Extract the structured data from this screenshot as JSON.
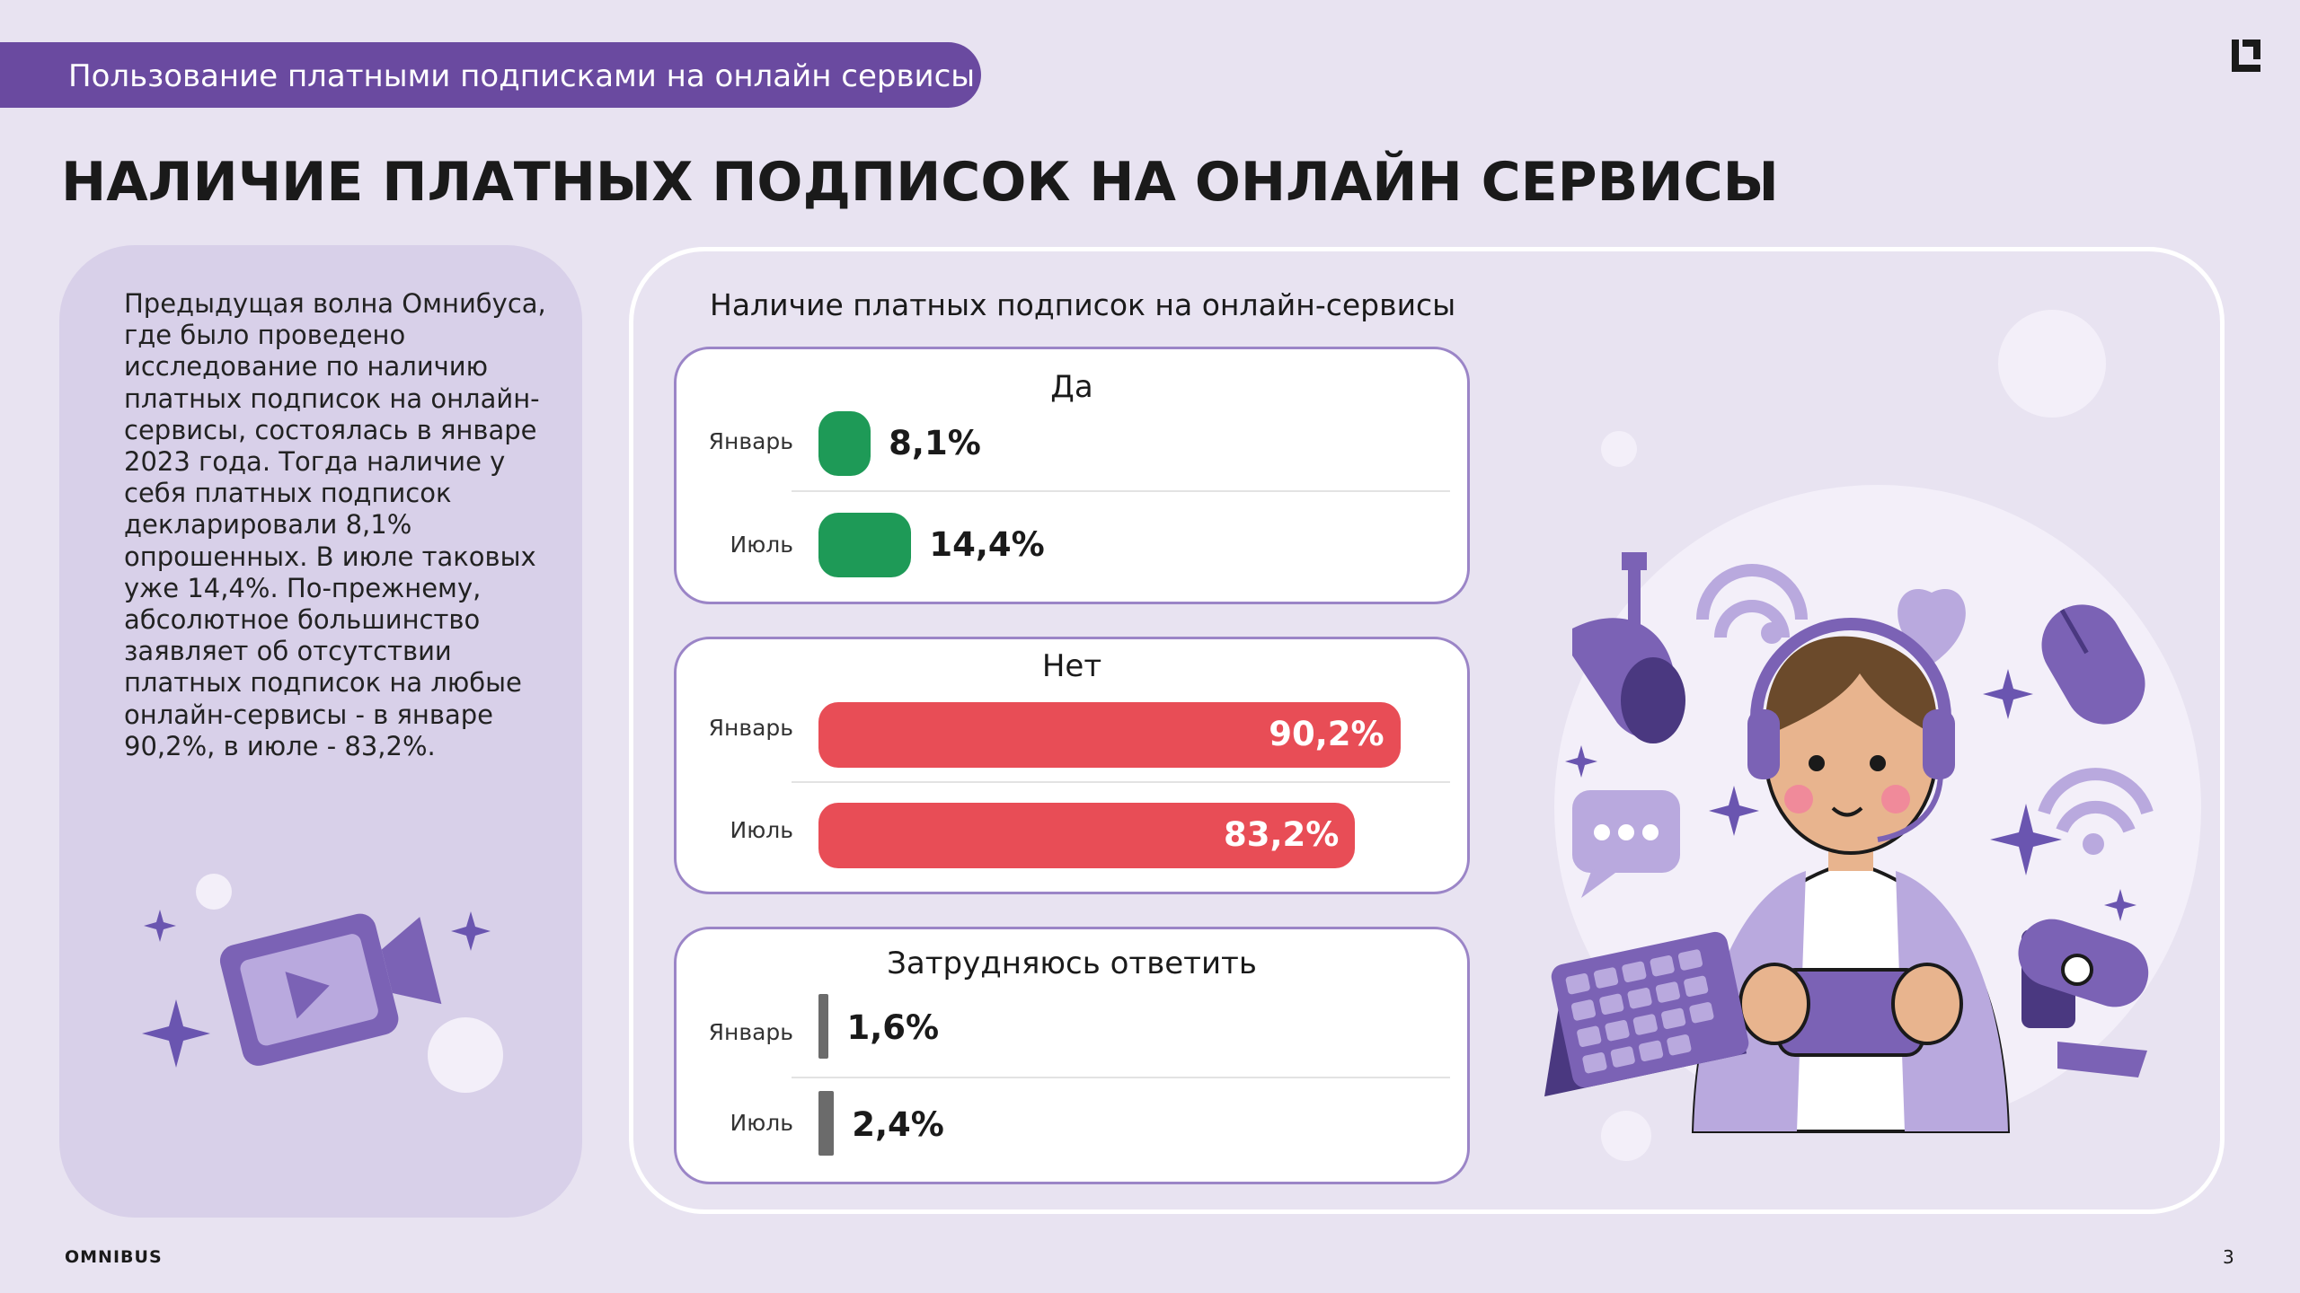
{
  "header": {
    "section_label": "Пользование платными подписками на онлайн сервисы"
  },
  "page_title": "НАЛИЧИЕ ПЛАТНЫХ ПОДПИСОК НА ОНЛАЙН СЕРВИСЫ",
  "left_panel": {
    "text": "Предыдущая волна Омнибуса, где было проведено исследование по наличию платных подписок на онлайн-сервисы, состоялась в январе 2023 года. Тогда наличие у себя платных подписок декларировали 8,1% опрошенных. В июле таковых уже 14,4%. По-прежнему, абсолютное большинство заявляет об отсутствии платных подписок на любые онлайн-сервисы - в январе 90,2%, в июле - 83,2%."
  },
  "chart_data": {
    "type": "bar",
    "orientation": "horizontal",
    "title": "Наличие платных подписок на онлайн-сервисы",
    "unit": "%",
    "categories": [
      "Январь",
      "Июль"
    ],
    "groups": [
      {
        "title": "Да",
        "color": "#1e9a57",
        "labels": [
          "8,1%",
          "14,4%"
        ],
        "values": [
          8.1,
          14.4
        ]
      },
      {
        "title": "Нет",
        "color": "#e84d56",
        "labels": [
          "90,2%",
          "83,2%"
        ],
        "values": [
          90.2,
          83.2
        ]
      },
      {
        "title": "Затрудняюсь ответить",
        "color": "#6b6b6b",
        "labels": [
          "1,6%",
          "2,4%"
        ],
        "values": [
          1.6,
          2.4
        ]
      }
    ],
    "xlim": [
      0,
      100
    ]
  },
  "colors": {
    "accent": "#6a4aa0",
    "background": "#e8e3f1",
    "panel": "#d8d0e9",
    "card_border": "#9b85c7"
  },
  "icons": [
    "logo-icon",
    "video-camera-icon",
    "gamer-illustration",
    "microphone-icon",
    "keyboard-icon",
    "webcam-icon",
    "mouse-icon",
    "heart-icon",
    "wifi-icon",
    "chat-bubble-icon",
    "sparkle-icon"
  ],
  "footer": {
    "brand": "OMNIBUS",
    "page_number": "3"
  }
}
